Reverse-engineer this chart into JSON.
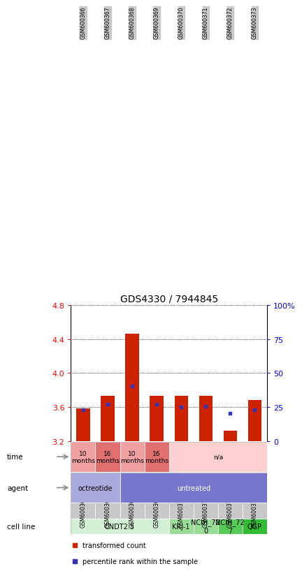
{
  "title": "GDS4330 / 7944845",
  "samples": [
    "GSM600366",
    "GSM600367",
    "GSM600368",
    "GSM600369",
    "GSM600370",
    "GSM600371",
    "GSM600372",
    "GSM600373"
  ],
  "bar_bottoms": [
    3.2,
    3.2,
    3.2,
    3.2,
    3.2,
    3.2,
    3.2,
    3.2
  ],
  "bar_tops": [
    3.58,
    3.73,
    4.46,
    3.73,
    3.73,
    3.73,
    3.32,
    3.68
  ],
  "blue_dots": [
    3.57,
    3.63,
    3.85,
    3.63,
    3.6,
    3.61,
    3.53,
    3.57
  ],
  "ylim": [
    3.2,
    4.8
  ],
  "yticks_left": [
    3.2,
    3.6,
    4.0,
    4.4,
    4.8
  ],
  "yticks_right": [
    0,
    25,
    50,
    75,
    100
  ],
  "ytick_labels_right": [
    "0",
    "25",
    "50",
    "75",
    "100%"
  ],
  "bar_color": "#cc2200",
  "dot_color": "#3333bb",
  "cell_line_groups": [
    {
      "label": "CNDT2.5",
      "start": 0,
      "end": 4,
      "color": "#d4f0d4"
    },
    {
      "label": "KRJ-1",
      "start": 4,
      "end": 5,
      "color": "#99dd99"
    },
    {
      "label": "NCIH_72\n0",
      "start": 5,
      "end": 6,
      "color": "#99dd99"
    },
    {
      "label": "NCIH_72\n7",
      "start": 6,
      "end": 7,
      "color": "#55cc55"
    },
    {
      "label": "QGP",
      "start": 7,
      "end": 8,
      "color": "#33bb33"
    }
  ],
  "agent_groups": [
    {
      "label": "octreotide",
      "start": 0,
      "end": 2,
      "color": "#aaaadd"
    },
    {
      "label": "untreated",
      "start": 2,
      "end": 8,
      "color": "#7777cc"
    }
  ],
  "time_groups": [
    {
      "label": "10\nmonths",
      "start": 0,
      "end": 1,
      "color": "#f0a0a0"
    },
    {
      "label": "16\nmonths",
      "start": 1,
      "end": 2,
      "color": "#e07070"
    },
    {
      "label": "10\nmonths",
      "start": 2,
      "end": 3,
      "color": "#f0a0a0"
    },
    {
      "label": "16\nmonths",
      "start": 3,
      "end": 4,
      "color": "#e07070"
    },
    {
      "label": "n/a",
      "start": 4,
      "end": 8,
      "color": "#ffd0d0"
    }
  ],
  "row_labels": [
    "cell line",
    "agent",
    "time"
  ],
  "legend_bar_color": "#cc2200",
  "legend_dot_color": "#3333bb",
  "legend_bar_label": "transformed count",
  "legend_dot_label": "percentile rank within the sample",
  "sample_box_color": "#c8c8c8",
  "chart_border_color": "#000000",
  "row_border_color": "#888888",
  "arrow_color": "#888888"
}
